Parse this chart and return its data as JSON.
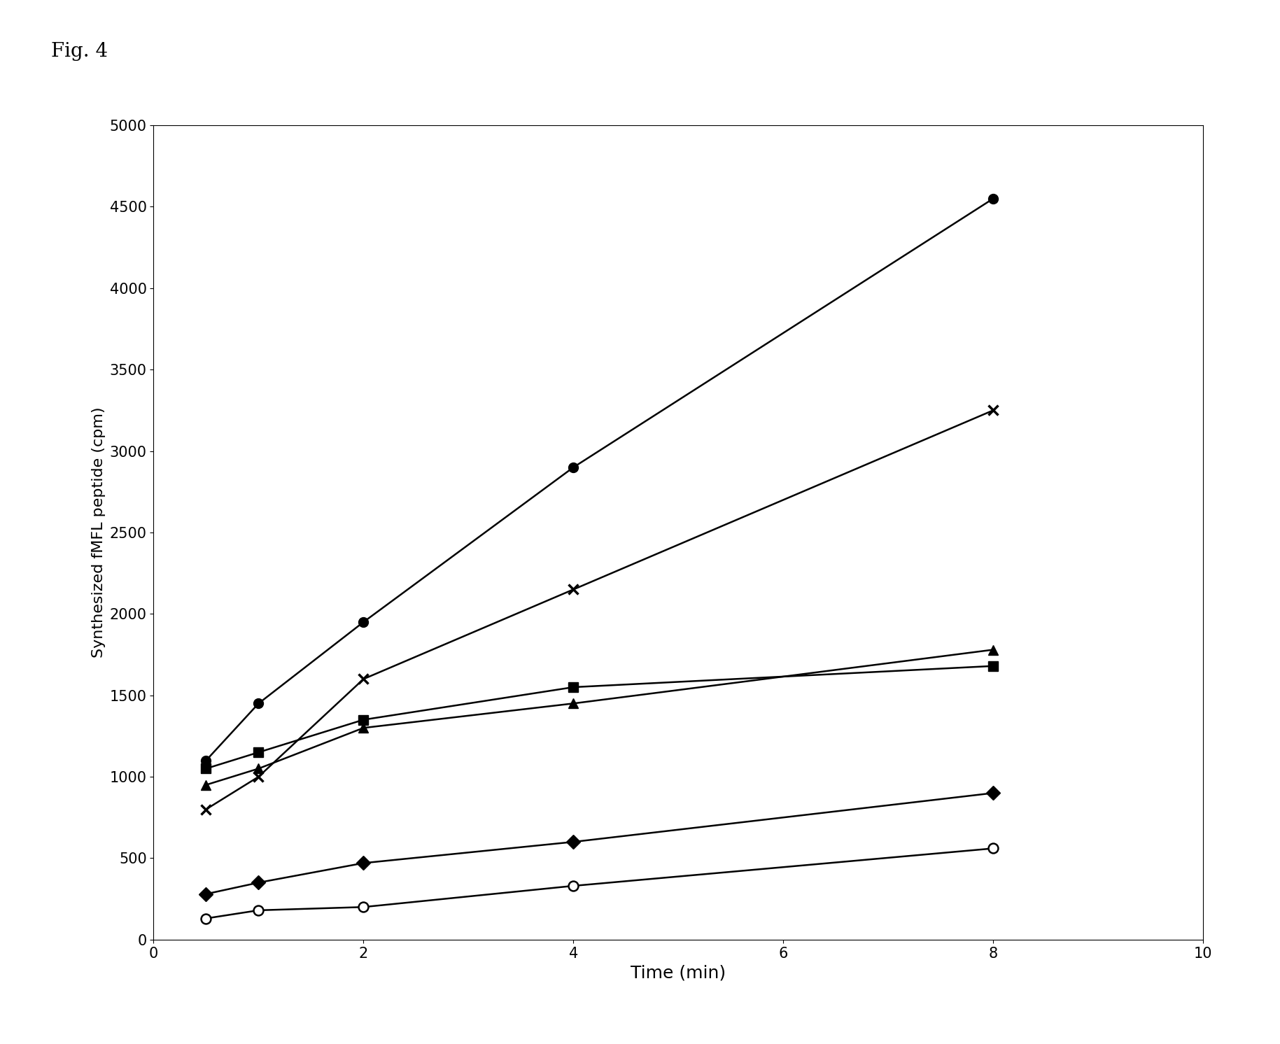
{
  "xlabel": "Time (min)",
  "ylabel": "Synthesized fMFL peptide (cpm)",
  "xlim": [
    0,
    10
  ],
  "ylim": [
    0,
    5000
  ],
  "xticks": [
    0,
    2,
    4,
    6,
    8,
    10
  ],
  "yticks": [
    0,
    500,
    1000,
    1500,
    2000,
    2500,
    3000,
    3500,
    4000,
    4500,
    5000
  ],
  "x_values": [
    0.5,
    1,
    2,
    4,
    8
  ],
  "series": [
    {
      "label": "filled_circle",
      "marker": "o",
      "filled": true,
      "open": false,
      "y": [
        1100,
        1450,
        1950,
        2900,
        4550
      ]
    },
    {
      "label": "x_marker",
      "marker": "x",
      "filled": false,
      "open": false,
      "y": [
        800,
        1000,
        1600,
        2150,
        3250
      ]
    },
    {
      "label": "filled_square",
      "marker": "s",
      "filled": true,
      "open": false,
      "y": [
        1050,
        1150,
        1350,
        1550,
        1680
      ]
    },
    {
      "label": "filled_triangle",
      "marker": "^",
      "filled": true,
      "open": false,
      "y": [
        950,
        1050,
        1300,
        1450,
        1780
      ]
    },
    {
      "label": "filled_diamond",
      "marker": "D",
      "filled": true,
      "open": false,
      "y": [
        280,
        350,
        470,
        600,
        900
      ]
    },
    {
      "label": "open_circle",
      "marker": "o",
      "filled": false,
      "open": true,
      "y": [
        130,
        180,
        200,
        330,
        560
      ]
    }
  ],
  "line_width": 1.8,
  "marker_size": 10,
  "color": "#000000",
  "background_color": "#ffffff",
  "fig_title": "Fig. 4",
  "fig_title_fontsize": 20,
  "xlabel_fontsize": 18,
  "ylabel_fontsize": 16,
  "tick_fontsize": 15
}
